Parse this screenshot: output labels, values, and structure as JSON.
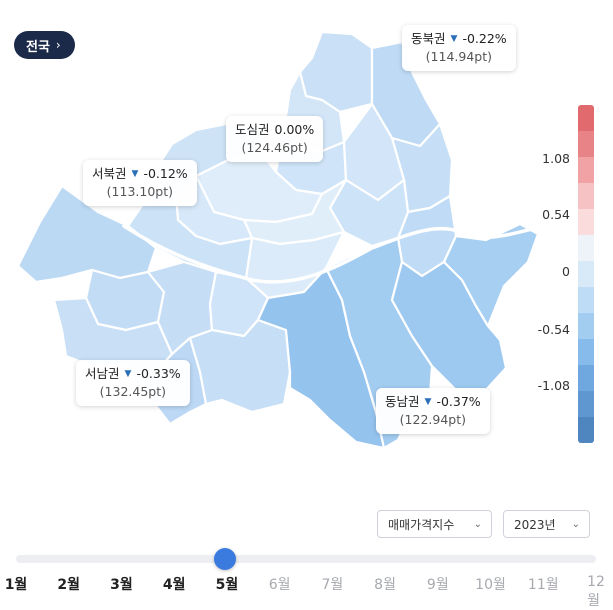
{
  "nation_button": {
    "label": "전국",
    "icon": "chevron-right-icon"
  },
  "regions": [
    {
      "id": "dongbuk",
      "name": "동북권",
      "direction": "down",
      "change": "-0.22%",
      "index": "(114.94pt)"
    },
    {
      "id": "dosim",
      "name": "도심권",
      "direction": "none",
      "change": "0.00%",
      "index": "(124.46pt)"
    },
    {
      "id": "seobuk",
      "name": "서북권",
      "direction": "down",
      "change": "-0.12%",
      "index": "(113.10pt)"
    },
    {
      "id": "seonam",
      "name": "서남권",
      "direction": "down",
      "change": "-0.33%",
      "index": "(132.45pt)"
    },
    {
      "id": "dongnam",
      "name": "동남권",
      "direction": "down",
      "change": "-0.37%",
      "index": "(122.94pt)"
    }
  ],
  "legend": {
    "labels": [
      "1.08",
      "0.54",
      "0",
      "-0.54",
      "-1.08"
    ],
    "colors": [
      "#e06a6e",
      "#e88488",
      "#f0a2a5",
      "#f6c2c4",
      "#fadcdd",
      "#eef3f9",
      "#d8e9f8",
      "#bfdcf6",
      "#a3ccf1",
      "#86bbeb",
      "#6fa8de",
      "#5f98d0",
      "#4f86c0"
    ]
  },
  "controls": {
    "index_type": "매매가격지수",
    "year": "2023년"
  },
  "timeline": {
    "months": [
      "1월",
      "2월",
      "3월",
      "4월",
      "5월",
      "6월",
      "7월",
      "8월",
      "9월",
      "10월",
      "11월",
      "12월"
    ],
    "selected": "5월"
  },
  "colors": {
    "accent": "#3b7be0",
    "nation_button": "#1c2a4a"
  }
}
